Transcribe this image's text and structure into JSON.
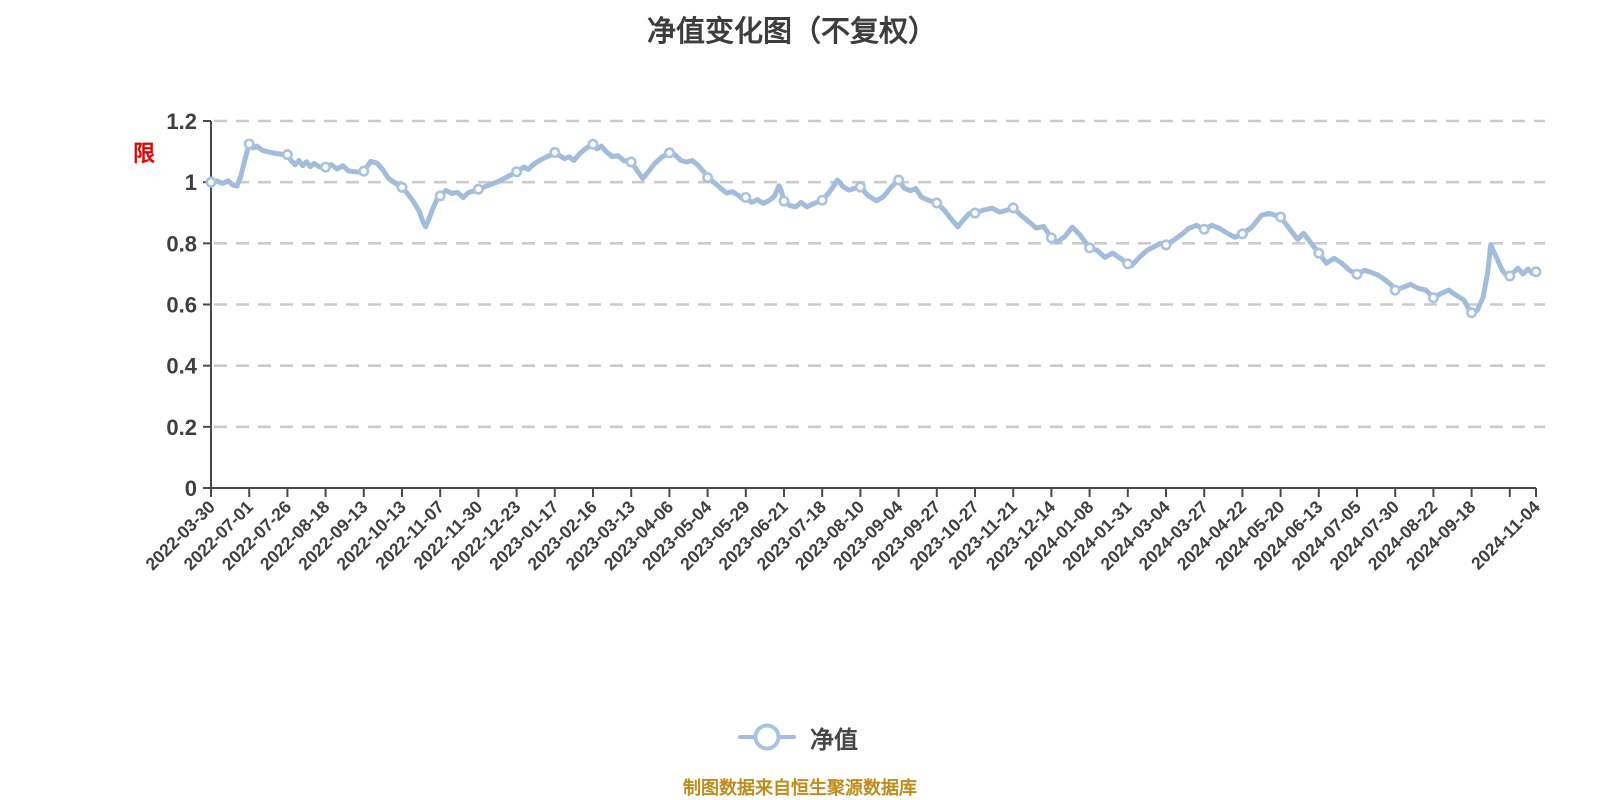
{
  "page": {
    "title": "净值变化图（不复权）",
    "footer": "制图数据来自恒生聚源数据库"
  },
  "axis_flag": "限",
  "legend": {
    "label": "净值"
  },
  "colors": {
    "line": "#a2bddc",
    "marker_ring": "#a9c2df",
    "marker_fill": "#ffffff",
    "grid": "#cccccc",
    "axis": "#4a4a4a",
    "text": "#3f3f3f",
    "flag_red": "#e60000",
    "footer": "#bf8d1d"
  },
  "chart_data": {
    "type": "line",
    "title": "净值变化图（不复权）",
    "series_name": "净值",
    "legend_position": "bottom",
    "grid": "horizontal dashed",
    "y_axis": {
      "min": 0,
      "max": 1.2,
      "tick_step": 0.2,
      "tick_labels": [
        "0",
        "0.2",
        "0.4",
        "0.6",
        "0.8",
        "1",
        "1.2"
      ]
    },
    "x_tick_labels": [
      "2022-03-30",
      "2022-07-01",
      "2022-07-26",
      "2022-08-18",
      "2022-09-13",
      "2022-10-13",
      "2022-11-07",
      "2022-11-30",
      "2022-12-23",
      "2023-01-17",
      "2023-02-16",
      "2023-03-13",
      "2023-04-06",
      "2023-05-04",
      "2023-05-29",
      "2023-06-21",
      "2023-07-18",
      "2023-08-10",
      "2023-09-04",
      "2023-09-27",
      "2023-10-27",
      "2023-11-21",
      "2023-12-14",
      "2024-01-08",
      "2024-01-31",
      "2024-03-04",
      "2024-03-27",
      "2024-04-22",
      "2024-05-20",
      "2024-06-13",
      "2024-07-05",
      "2024-07-30",
      "2024-08-22",
      "2024-09-18",
      "2024-11-04"
    ],
    "num_ticks": 36,
    "unlabeled_tick_index": 34,
    "marker_values_at_ticks": [
      1.0,
      1.125,
      1.09,
      1.049,
      1.036,
      0.983,
      0.955,
      0.977,
      1.034,
      1.097,
      1.124,
      1.066,
      1.096,
      1.015,
      0.95,
      0.938,
      0.941,
      0.984,
      1.007,
      0.932,
      0.899,
      0.916,
      0.818,
      0.785,
      0.733,
      0.795,
      0.846,
      0.831,
      0.886,
      0.768,
      0.699,
      0.647,
      0.622,
      0.573,
      0.693,
      0.707
    ],
    "curve": [
      [
        0,
        1.0
      ],
      [
        0.15,
        1.004
      ],
      [
        0.3,
        0.996
      ],
      [
        0.45,
        1.004
      ],
      [
        0.58,
        0.99
      ],
      [
        0.68,
        0.987
      ],
      [
        0.78,
        1.02
      ],
      [
        0.9,
        1.08
      ],
      [
        1,
        1.125
      ],
      [
        1.1,
        1.112
      ],
      [
        1.2,
        1.118
      ],
      [
        1.35,
        1.104
      ],
      [
        1.5,
        1.099
      ],
      [
        1.65,
        1.095
      ],
      [
        1.8,
        1.092
      ],
      [
        2,
        1.088
      ],
      [
        2.1,
        1.07
      ],
      [
        2.2,
        1.057
      ],
      [
        2.3,
        1.071
      ],
      [
        2.4,
        1.054
      ],
      [
        2.5,
        1.067
      ],
      [
        2.6,
        1.051
      ],
      [
        2.7,
        1.061
      ],
      [
        2.85,
        1.049
      ],
      [
        3,
        1.049
      ],
      [
        3.15,
        1.057
      ],
      [
        3.3,
        1.043
      ],
      [
        3.45,
        1.054
      ],
      [
        3.6,
        1.037
      ],
      [
        3.75,
        1.034
      ],
      [
        3.9,
        1.033
      ],
      [
        4,
        1.036
      ],
      [
        4.18,
        1.068
      ],
      [
        4.35,
        1.062
      ],
      [
        4.5,
        1.04
      ],
      [
        4.65,
        1.012
      ],
      [
        4.82,
        0.997
      ],
      [
        5,
        0.983
      ],
      [
        5.15,
        0.962
      ],
      [
        5.3,
        0.936
      ],
      [
        5.45,
        0.905
      ],
      [
        5.55,
        0.87
      ],
      [
        5.62,
        0.854
      ],
      [
        5.7,
        0.878
      ],
      [
        5.8,
        0.912
      ],
      [
        5.9,
        0.94
      ],
      [
        6,
        0.955
      ],
      [
        6.15,
        0.973
      ],
      [
        6.3,
        0.963
      ],
      [
        6.45,
        0.967
      ],
      [
        6.6,
        0.95
      ],
      [
        6.75,
        0.967
      ],
      [
        6.9,
        0.971
      ],
      [
        7,
        0.977
      ],
      [
        7.25,
        0.989
      ],
      [
        7.5,
        1.001
      ],
      [
        7.75,
        1.017
      ],
      [
        8,
        1.034
      ],
      [
        8.1,
        1.042
      ],
      [
        8.2,
        1.05
      ],
      [
        8.3,
        1.041
      ],
      [
        8.45,
        1.059
      ],
      [
        8.6,
        1.071
      ],
      [
        8.75,
        1.081
      ],
      [
        8.9,
        1.089
      ],
      [
        9,
        1.097
      ],
      [
        9.12,
        1.087
      ],
      [
        9.25,
        1.077
      ],
      [
        9.38,
        1.083
      ],
      [
        9.5,
        1.071
      ],
      [
        9.65,
        1.093
      ],
      [
        9.8,
        1.109
      ],
      [
        10,
        1.124
      ],
      [
        10.1,
        1.109
      ],
      [
        10.22,
        1.118
      ],
      [
        10.35,
        1.099
      ],
      [
        10.5,
        1.084
      ],
      [
        10.65,
        1.087
      ],
      [
        10.8,
        1.071
      ],
      [
        11,
        1.066
      ],
      [
        11.15,
        1.039
      ],
      [
        11.3,
        1.012
      ],
      [
        11.45,
        1.034
      ],
      [
        11.6,
        1.059
      ],
      [
        11.8,
        1.082
      ],
      [
        12,
        1.096
      ],
      [
        12.15,
        1.089
      ],
      [
        12.3,
        1.071
      ],
      [
        12.45,
        1.066
      ],
      [
        12.6,
        1.071
      ],
      [
        12.75,
        1.055
      ],
      [
        12.9,
        1.034
      ],
      [
        13,
        1.015
      ],
      [
        13.2,
        0.996
      ],
      [
        13.35,
        0.979
      ],
      [
        13.5,
        0.964
      ],
      [
        13.65,
        0.969
      ],
      [
        13.8,
        0.957
      ],
      [
        13.9,
        0.947
      ],
      [
        14,
        0.95
      ],
      [
        14.15,
        0.934
      ],
      [
        14.3,
        0.943
      ],
      [
        14.45,
        0.931
      ],
      [
        14.6,
        0.939
      ],
      [
        14.75,
        0.954
      ],
      [
        14.87,
        0.988
      ],
      [
        14.94,
        0.968
      ],
      [
        15,
        0.938
      ],
      [
        15.15,
        0.924
      ],
      [
        15.3,
        0.919
      ],
      [
        15.45,
        0.934
      ],
      [
        15.6,
        0.919
      ],
      [
        15.75,
        0.929
      ],
      [
        15.9,
        0.936
      ],
      [
        16,
        0.941
      ],
      [
        16.2,
        0.969
      ],
      [
        16.4,
        1.007
      ],
      [
        16.55,
        0.985
      ],
      [
        16.7,
        0.974
      ],
      [
        16.85,
        0.98
      ],
      [
        17,
        0.984
      ],
      [
        17.2,
        0.956
      ],
      [
        17.42,
        0.939
      ],
      [
        17.6,
        0.952
      ],
      [
        17.8,
        0.983
      ],
      [
        17.92,
        0.998
      ],
      [
        18,
        1.007
      ],
      [
        18.15,
        0.98
      ],
      [
        18.3,
        0.972
      ],
      [
        18.45,
        0.979
      ],
      [
        18.6,
        0.951
      ],
      [
        18.8,
        0.94
      ],
      [
        19,
        0.932
      ],
      [
        19.2,
        0.908
      ],
      [
        19.4,
        0.876
      ],
      [
        19.55,
        0.854
      ],
      [
        19.7,
        0.877
      ],
      [
        19.85,
        0.898
      ],
      [
        20,
        0.899
      ],
      [
        20.2,
        0.908
      ],
      [
        20.45,
        0.915
      ],
      [
        20.65,
        0.902
      ],
      [
        20.85,
        0.909
      ],
      [
        21,
        0.916
      ],
      [
        21.2,
        0.892
      ],
      [
        21.45,
        0.866
      ],
      [
        21.6,
        0.85
      ],
      [
        21.8,
        0.855
      ],
      [
        22,
        0.818
      ],
      [
        22.15,
        0.804
      ],
      [
        22.35,
        0.822
      ],
      [
        22.55,
        0.853
      ],
      [
        22.75,
        0.827
      ],
      [
        23,
        0.785
      ],
      [
        23.2,
        0.777
      ],
      [
        23.4,
        0.754
      ],
      [
        23.6,
        0.768
      ],
      [
        23.8,
        0.751
      ],
      [
        24,
        0.733
      ],
      [
        24.1,
        0.727
      ],
      [
        24.3,
        0.754
      ],
      [
        24.5,
        0.777
      ],
      [
        24.7,
        0.79
      ],
      [
        24.85,
        0.8
      ],
      [
        25,
        0.795
      ],
      [
        25.2,
        0.81
      ],
      [
        25.45,
        0.833
      ],
      [
        25.6,
        0.849
      ],
      [
        25.8,
        0.859
      ],
      [
        26,
        0.846
      ],
      [
        26.2,
        0.859
      ],
      [
        26.4,
        0.849
      ],
      [
        26.6,
        0.833
      ],
      [
        26.8,
        0.82
      ],
      [
        27,
        0.831
      ],
      [
        27.25,
        0.853
      ],
      [
        27.5,
        0.892
      ],
      [
        27.7,
        0.898
      ],
      [
        27.85,
        0.892
      ],
      [
        28,
        0.886
      ],
      [
        28.2,
        0.853
      ],
      [
        28.45,
        0.813
      ],
      [
        28.6,
        0.833
      ],
      [
        28.8,
        0.8
      ],
      [
        29,
        0.768
      ],
      [
        29.2,
        0.735
      ],
      [
        29.4,
        0.751
      ],
      [
        29.6,
        0.735
      ],
      [
        29.8,
        0.712
      ],
      [
        30,
        0.699
      ],
      [
        30.2,
        0.712
      ],
      [
        30.35,
        0.706
      ],
      [
        30.55,
        0.696
      ],
      [
        30.75,
        0.679
      ],
      [
        30.9,
        0.663
      ],
      [
        31,
        0.647
      ],
      [
        31.2,
        0.656
      ],
      [
        31.4,
        0.666
      ],
      [
        31.6,
        0.653
      ],
      [
        31.8,
        0.647
      ],
      [
        32,
        0.622
      ],
      [
        32.2,
        0.636
      ],
      [
        32.4,
        0.647
      ],
      [
        32.6,
        0.63
      ],
      [
        32.8,
        0.614
      ],
      [
        32.9,
        0.591
      ],
      [
        33,
        0.573
      ],
      [
        33.15,
        0.581
      ],
      [
        33.3,
        0.624
      ],
      [
        33.42,
        0.703
      ],
      [
        33.5,
        0.795
      ],
      [
        33.65,
        0.754
      ],
      [
        33.8,
        0.712
      ],
      [
        33.88,
        0.7
      ],
      [
        34,
        0.693
      ],
      [
        34.3,
        0.719
      ],
      [
        34.5,
        0.7
      ],
      [
        34.7,
        0.716
      ],
      [
        34.85,
        0.702
      ],
      [
        35,
        0.707
      ]
    ]
  }
}
